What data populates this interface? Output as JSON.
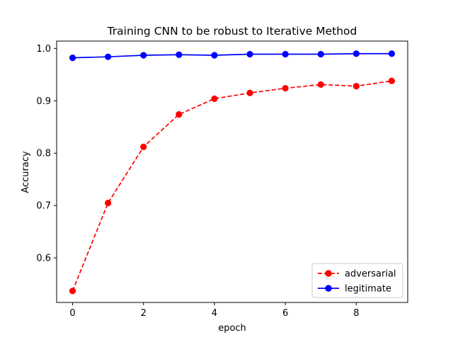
{
  "chart_data": {
    "type": "line",
    "title": "Training CNN to be robust to Iterative Method",
    "xlabel": "epoch",
    "ylabel": "Accuracy",
    "xlim": [
      -0.45,
      9.45
    ],
    "ylim": [
      0.515,
      1.014
    ],
    "xticks": [
      0,
      2,
      4,
      6,
      8
    ],
    "xtick_labels": [
      "0",
      "2",
      "4",
      "6",
      "8"
    ],
    "yticks": [
      0.6,
      0.7,
      0.8,
      0.9,
      1.0
    ],
    "ytick_labels": [
      "0.6",
      "0.7",
      "0.8",
      "0.9",
      "1.0"
    ],
    "grid": false,
    "legend_position": "lower-right",
    "x": [
      0,
      1,
      2,
      3,
      4,
      5,
      6,
      7,
      8,
      9
    ],
    "series": [
      {
        "name": "adversarial",
        "color": "#ff0000",
        "line_style": "dashed",
        "marker": "circle",
        "values": [
          0.537,
          0.705,
          0.812,
          0.874,
          0.904,
          0.915,
          0.924,
          0.931,
          0.928,
          0.938
        ]
      },
      {
        "name": "legitimate",
        "color": "#0000ff",
        "line_style": "solid",
        "marker": "circle",
        "values": [
          0.982,
          0.984,
          0.987,
          0.988,
          0.987,
          0.989,
          0.989,
          0.989,
          0.99,
          0.99
        ]
      }
    ]
  }
}
